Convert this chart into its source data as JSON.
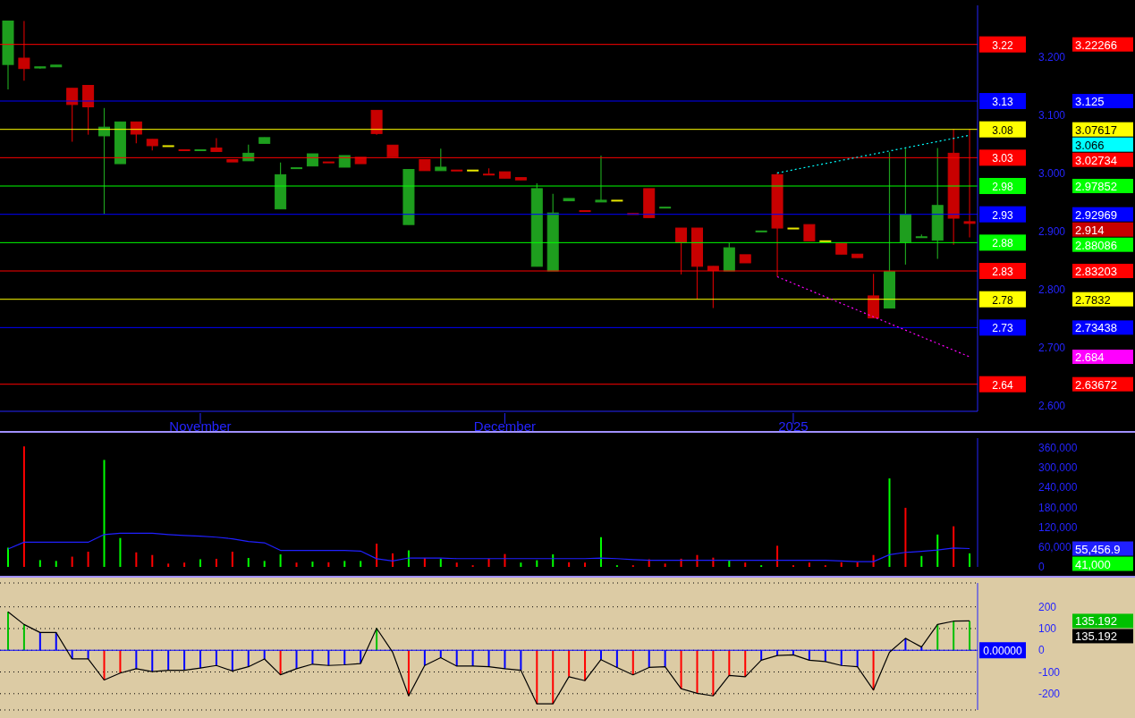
{
  "chart_data": [
    {
      "type": "candlestick",
      "categories": [
        null,
        null,
        null,
        null,
        null,
        null,
        null,
        null,
        null,
        null,
        null,
        null,
        "November",
        null,
        null,
        null,
        null,
        null,
        null,
        null,
        null,
        null,
        null,
        null,
        null,
        null,
        null,
        null,
        null,
        null,
        null,
        "December",
        null,
        null,
        null,
        null,
        null,
        null,
        null,
        null,
        null,
        null,
        null,
        null,
        null,
        null,
        null,
        null,
        null,
        "2025",
        null,
        null,
        null,
        null,
        null,
        null,
        null,
        null,
        null,
        null,
        null
      ],
      "ohlc": [
        [
          3.188,
          3.263,
          3.145,
          3.263
        ],
        [
          3.199,
          3.263,
          3.16,
          3.181
        ],
        [
          3.182,
          3.184,
          3.181,
          3.184
        ],
        [
          3.184,
          3.187,
          3.184,
          3.187
        ],
        [
          3.147,
          3.147,
          3.055,
          3.119
        ],
        [
          3.152,
          3.152,
          3.067,
          3.115
        ],
        [
          3.065,
          3.113,
          2.93,
          3.08
        ],
        [
          3.017,
          3.089,
          3.017,
          3.089
        ],
        [
          3.089,
          3.089,
          3.052,
          3.068
        ],
        [
          3.059,
          3.059,
          3.04,
          3.048
        ],
        [
          3.048,
          3.048,
          3.048,
          3.048
        ],
        [
          3.041,
          3.041,
          3.04,
          3.04
        ],
        [
          3.04,
          3.041,
          3.04,
          3.041
        ],
        [
          3.044,
          3.061,
          3.038,
          3.038
        ],
        [
          3.024,
          3.024,
          3.02,
          3.02
        ],
        [
          3.022,
          3.05,
          3.022,
          3.035
        ],
        [
          3.052,
          3.062,
          3.052,
          3.062
        ],
        [
          2.939,
          3.019,
          2.939,
          2.998
        ],
        [
          3.009,
          3.01,
          3.009,
          3.01
        ],
        [
          3.013,
          3.034,
          3.013,
          3.034
        ],
        [
          3.02,
          3.02,
          3.019,
          3.019
        ],
        [
          3.011,
          3.031,
          3.011,
          3.031
        ],
        [
          3.028,
          3.028,
          3.017,
          3.017
        ],
        [
          3.109,
          3.109,
          3.067,
          3.069
        ],
        [
          3.049,
          3.049,
          3.029,
          3.029
        ],
        [
          2.912,
          3.007,
          2.912,
          3.007
        ],
        [
          3.024,
          3.024,
          3.005,
          3.005
        ],
        [
          3.005,
          3.043,
          3.005,
          3.011
        ],
        [
          3.006,
          3.006,
          3.005,
          3.005
        ],
        [
          3.006,
          3.006,
          3.006,
          3.006
        ],
        [
          2.999,
          3.009,
          2.998,
          2.998
        ],
        [
          3.003,
          3.003,
          2.992,
          2.992
        ],
        [
          2.993,
          2.993,
          2.989,
          2.989
        ],
        [
          2.84,
          2.983,
          2.84,
          2.974
        ],
        [
          2.832,
          2.965,
          2.832,
          2.932
        ],
        [
          2.953,
          2.957,
          2.953,
          2.957
        ],
        [
          2.936,
          2.936,
          2.935,
          2.935
        ],
        [
          2.951,
          3.031,
          2.951,
          2.954
        ],
        [
          2.954,
          2.954,
          2.954,
          2.954
        ],
        [
          2.931,
          2.931,
          2.93,
          2.93
        ],
        [
          2.974,
          2.974,
          2.924,
          2.924
        ],
        [
          2.941,
          2.942,
          2.941,
          2.942
        ],
        [
          2.906,
          2.906,
          2.826,
          2.881
        ],
        [
          2.906,
          2.906,
          2.783,
          2.84
        ],
        [
          2.84,
          2.84,
          2.768,
          2.833
        ],
        [
          2.832,
          2.88,
          2.832,
          2.872
        ],
        [
          2.86,
          2.86,
          2.846,
          2.846
        ],
        [
          2.9,
          2.901,
          2.9,
          2.901
        ],
        [
          2.998,
          3.002,
          2.822,
          2.906
        ],
        [
          2.906,
          2.906,
          2.906,
          2.906
        ],
        [
          2.912,
          2.912,
          2.884,
          2.884
        ],
        [
          2.884,
          2.884,
          2.884,
          2.884
        ],
        [
          2.879,
          2.879,
          2.861,
          2.861
        ],
        [
          2.861,
          2.861,
          2.855,
          2.855
        ],
        [
          2.789,
          2.827,
          2.751,
          2.751
        ],
        [
          2.768,
          3.037,
          2.768,
          2.831
        ],
        [
          2.882,
          3.043,
          2.843,
          2.93
        ],
        [
          2.89,
          2.895,
          2.89,
          2.891
        ],
        [
          2.885,
          3.044,
          2.853,
          2.945
        ],
        [
          3.035,
          3.077,
          2.877,
          2.923
        ],
        [
          2.917,
          3.077,
          2.89,
          2.914
        ]
      ],
      "colors": [
        "#1e9e1e",
        "#c80000",
        "#1e9e1e",
        "#1e9e1e",
        "#c80000",
        "#c80000",
        "#1e9e1e",
        "#1e9e1e",
        "#c80000",
        "#c80000",
        "#e6e600",
        "#c80000",
        "#1e9e1e",
        "#c80000",
        "#c80000",
        "#1e9e1e",
        "#1e9e1e",
        "#1e9e1e",
        "#1e9e1e",
        "#1e9e1e",
        "#c80000",
        "#1e9e1e",
        "#c80000",
        "#c80000",
        "#c80000",
        "#1e9e1e",
        "#c80000",
        "#1e9e1e",
        "#c80000",
        "#e6e600",
        "#c80000",
        "#c80000",
        "#c80000",
        "#1e9e1e",
        "#1e9e1e",
        "#1e9e1e",
        "#c80000",
        "#1e9e1e",
        "#e6e600",
        "#c80000",
        "#c80000",
        "#1e9e1e",
        "#c80000",
        "#c80000",
        "#c80000",
        "#1e9e1e",
        "#c80000",
        "#1e9e1e",
        "#c80000",
        "#e6e600",
        "#c80000",
        "#e6e600",
        "#c80000",
        "#c80000",
        "#c80000",
        "#1e9e1e",
        "#1e9e1e",
        "#1e9e1e",
        "#1e9e1e",
        "#c80000",
        "#c80000"
      ],
      "series": [
        {
          "type": "line",
          "color": "#00ffff",
          "line_style": "dotted",
          "values": [
            null,
            null,
            null,
            null,
            null,
            null,
            null,
            null,
            null,
            null,
            null,
            null,
            null,
            null,
            null,
            null,
            null,
            null,
            null,
            null,
            null,
            null,
            null,
            null,
            null,
            null,
            null,
            null,
            null,
            null,
            null,
            null,
            null,
            null,
            null,
            null,
            null,
            null,
            null,
            null,
            null,
            null,
            null,
            null,
            null,
            null,
            null,
            null,
            3.001,
            null,
            null,
            null,
            null,
            null,
            null,
            null,
            null,
            null,
            null,
            null,
            3.066
          ]
        },
        {
          "type": "line",
          "color": "#ff00ff",
          "line_style": "dotted",
          "values": [
            null,
            null,
            null,
            null,
            null,
            null,
            null,
            null,
            null,
            null,
            null,
            null,
            null,
            null,
            null,
            null,
            null,
            null,
            null,
            null,
            null,
            null,
            null,
            null,
            null,
            null,
            null,
            null,
            null,
            null,
            null,
            null,
            null,
            null,
            null,
            null,
            null,
            null,
            null,
            null,
            null,
            null,
            null,
            null,
            null,
            null,
            null,
            null,
            2.822,
            null,
            null,
            null,
            null,
            null,
            null,
            null,
            null,
            null,
            null,
            null,
            2.684
          ]
        }
      ],
      "ylim": [
        2.59,
        3.29
      ],
      "yticks": [
        {
          "value": 2.6,
          "label": "2.600"
        },
        {
          "value": 2.7,
          "label": "2.700"
        },
        {
          "value": 2.8,
          "label": "2.800"
        },
        {
          "value": 2.9,
          "label": "2.900"
        },
        {
          "value": 3.0,
          "label": "3.000"
        },
        {
          "value": 3.1,
          "label": "3.100"
        },
        {
          "value": 3.2,
          "label": "3.200"
        }
      ],
      "ref_lines": [
        {
          "axis": "y",
          "value": 3.22266,
          "label": "3.22",
          "color": "#ff0000"
        },
        {
          "axis": "y",
          "value": 3.125,
          "label": "3.13",
          "color": "#0000ff"
        },
        {
          "axis": "y",
          "value": 3.07617,
          "label": "3.08",
          "color": "#ffff00"
        },
        {
          "axis": "y",
          "value": 3.02734,
          "label": "3.03",
          "color": "#ff0000"
        },
        {
          "axis": "y",
          "value": 2.97852,
          "label": "2.98",
          "color": "#00ff00"
        },
        {
          "axis": "y",
          "value": 2.92969,
          "label": "2.93",
          "color": "#0000ff"
        },
        {
          "axis": "y",
          "value": 2.88086,
          "label": "2.88",
          "color": "#00ff00"
        },
        {
          "axis": "y",
          "value": 2.83203,
          "label": "2.83",
          "color": "#ff0000"
        },
        {
          "axis": "y",
          "value": 2.7832,
          "label": "2.78",
          "color": "#ffff00"
        },
        {
          "axis": "y",
          "value": 2.73438,
          "label": "2.73",
          "color": "#0000ff"
        },
        {
          "axis": "y",
          "value": 2.63672,
          "label": "2.64",
          "color": "#ff0000"
        }
      ],
      "annotations": [
        "3.22266",
        "3.125",
        "3.07617",
        "3.066",
        "3.02734",
        "2.97852",
        "2.92969",
        "2.914",
        "2.88086",
        "2.83203",
        "2.7832",
        "2.73438",
        "2.684",
        "2.63672"
      ]
    },
    {
      "type": "bar",
      "categories": [
        null,
        null,
        null,
        null,
        null,
        null,
        null,
        null,
        null,
        null,
        null,
        null,
        null,
        null,
        null,
        null,
        null,
        null,
        null,
        null,
        null,
        null,
        null,
        null,
        null,
        null,
        null,
        null,
        null,
        null,
        null,
        null,
        null,
        null,
        null,
        null,
        null,
        null,
        null,
        null,
        null,
        null,
        null,
        null,
        null,
        null,
        null,
        null,
        null,
        null,
        null,
        null,
        null,
        null,
        null,
        null,
        null,
        null,
        null,
        null,
        null
      ],
      "series": [
        {
          "type": "bar",
          "values": [
            58000,
            365000,
            20600,
            18000,
            31000,
            46000,
            324000,
            87500,
            44000,
            36000,
            10000,
            13000,
            23000,
            24500,
            46000,
            27000,
            18000,
            38000,
            13000,
            16000,
            14000,
            18000,
            18000,
            70500,
            41000,
            50000,
            27000,
            24700,
            13000,
            5000,
            24700,
            39000,
            13000,
            20000,
            38000,
            14000,
            13000,
            90000,
            5000,
            5000,
            23000,
            10000,
            24700,
            36000,
            28000,
            20000,
            13000,
            5000,
            64000,
            5000,
            13000,
            5000,
            14000,
            14000,
            36000,
            268000,
            179000,
            33000,
            98000,
            123000,
            41000
          ],
          "colors": [
            "#00ff00",
            "#ff0000",
            "#00ff00",
            "#00ff00",
            "#ff0000",
            "#ff0000",
            "#00ff00",
            "#00ff00",
            "#ff0000",
            "#ff0000",
            "#ff0000",
            "#ff0000",
            "#00ff00",
            "#ff0000",
            "#ff0000",
            "#00ff00",
            "#00ff00",
            "#00ff00",
            "#ff0000",
            "#00ff00",
            "#ff0000",
            "#00ff00",
            "#00ff00",
            "#ff0000",
            "#ff0000",
            "#00ff00",
            "#ff0000",
            "#00ff00",
            "#ff0000",
            "#ff0000",
            "#ff0000",
            "#ff0000",
            "#00ff00",
            "#00ff00",
            "#00ff00",
            "#ff0000",
            "#ff0000",
            "#00ff00",
            "#00ff00",
            "#ff0000",
            "#ff0000",
            "#ff0000",
            "#ff0000",
            "#ff0000",
            "#ff0000",
            "#00ff00",
            "#ff0000",
            "#00ff00",
            "#ff0000",
            "#ff0000",
            "#ff0000",
            "#ff0000",
            "#ff0000",
            "#ff0000",
            "#ff0000",
            "#00ff00",
            "#ff0000",
            "#00ff00",
            "#00ff00",
            "#ff0000",
            "#00ff00"
          ]
        },
        {
          "type": "line",
          "color": "#2020ff",
          "values": [
            54000,
            74700,
            74700,
            74700,
            74700,
            74700,
            98000,
            101700,
            101700,
            101700,
            98000,
            95000,
            93000,
            90000,
            85000,
            77000,
            73000,
            50000,
            50000,
            50000,
            50000,
            50000,
            48000,
            24700,
            18000,
            27000,
            27000,
            27000,
            25000,
            25000,
            25000,
            25000,
            25000,
            25000,
            25000,
            25000,
            25000,
            27000,
            25000,
            22000,
            20000,
            20000,
            20000,
            20000,
            20000,
            20000,
            20000,
            20000,
            20000,
            20000,
            20000,
            20000,
            18000,
            16000,
            16000,
            37000,
            44000,
            47000,
            51000,
            57000,
            55456.9
          ]
        }
      ],
      "ylim": [
        0,
        390000
      ],
      "annotations": [
        "55,456.9",
        "41,000"
      ],
      "yticks": [
        0,
        {
          "value": 60000,
          "label": "60,000"
        },
        {
          "value": 120000,
          "label": "120,000"
        },
        {
          "value": 180000,
          "label": "180,000"
        },
        {
          "value": 240000,
          "label": "240,000"
        },
        {
          "value": 300000,
          "label": "300,000"
        },
        {
          "value": 360000,
          "label": "360,000"
        }
      ]
    },
    {
      "type": "bar",
      "categories": [
        null,
        null,
        null,
        null,
        null,
        null,
        null,
        null,
        null,
        null,
        null,
        null,
        null,
        null,
        null,
        null,
        null,
        null,
        null,
        null,
        null,
        null,
        null,
        null,
        null,
        null,
        null,
        null,
        null,
        null,
        null,
        null,
        null,
        null,
        null,
        null,
        null,
        null,
        null,
        null,
        null,
        null,
        null,
        null,
        null,
        null,
        null,
        null,
        null,
        null,
        null,
        null,
        null,
        null,
        null,
        null,
        null,
        null,
        null,
        null,
        null
      ],
      "series": [
        {
          "type": "bar",
          "values": [
            177,
            119,
            82,
            82,
            -40,
            -40,
            -137,
            -105,
            -85,
            -98,
            -92,
            -92,
            -82,
            -70,
            -95,
            -76,
            -40,
            -113,
            -85,
            -64,
            -70,
            -67,
            -61,
            101,
            null,
            -210,
            -70,
            -34,
            -73,
            -73,
            -76,
            -85,
            -92,
            -247,
            -247,
            -122,
            -140,
            -43,
            -79,
            -113,
            -79,
            -76,
            -177,
            -198,
            -210,
            -116,
            -122,
            -46,
            -24,
            -21,
            -46,
            -52,
            -70,
            -76,
            -183,
            null,
            55,
            15,
            119,
            134,
            135.192
          ],
          "colors": [
            "#00c000",
            "#00c000",
            "#0000ff",
            "#0000ff",
            "#0000ff",
            "#0000ff",
            "#ff0000",
            "#ff0000",
            "#0000ff",
            "#0000ff",
            "#0000ff",
            "#0000ff",
            "#0000ff",
            "#0000ff",
            "#0000ff",
            "#0000ff",
            "#0000ff",
            "#ff0000",
            "#0000ff",
            "#0000ff",
            "#0000ff",
            "#0000ff",
            "#0000ff",
            "#00c000",
            "#0000ff",
            "#ff0000",
            "#0000ff",
            "#0000ff",
            "#0000ff",
            "#0000ff",
            "#0000ff",
            "#0000ff",
            "#0000ff",
            "#ff0000",
            "#ff0000",
            "#ff0000",
            "#ff0000",
            "#0000ff",
            "#0000ff",
            "#ff0000",
            "#0000ff",
            "#0000ff",
            "#ff0000",
            "#ff0000",
            "#ff0000",
            "#ff0000",
            "#ff0000",
            "#0000ff",
            "#0000ff",
            "#0000ff",
            "#0000ff",
            "#0000ff",
            "#0000ff",
            "#0000ff",
            "#ff0000",
            "#0000ff",
            "#0000ff",
            "#0000ff",
            "#00c000",
            "#00c000",
            "#00c000"
          ]
        },
        {
          "type": "line",
          "color": "#000000",
          "values": [
            177,
            119,
            82,
            82,
            -40,
            -40,
            -137,
            -105,
            -85,
            -98,
            -92,
            -92,
            -82,
            -70,
            -95,
            -76,
            -40,
            -113,
            -85,
            -64,
            -70,
            -67,
            -61,
            101,
            -9,
            -210,
            -70,
            -34,
            -73,
            -73,
            -76,
            -85,
            -92,
            -247,
            -247,
            -122,
            -140,
            -43,
            -79,
            -113,
            -79,
            -76,
            -177,
            -198,
            -210,
            -116,
            -122,
            -46,
            -24,
            -21,
            -46,
            -52,
            -70,
            -76,
            -183,
            -9,
            55,
            15,
            119,
            134,
            135.192
          ]
        }
      ],
      "ylim": [
        -275,
        310
      ],
      "yticks": [
        -200,
        -100,
        0,
        100,
        200
      ],
      "grid": "y",
      "annotations": [
        "135.192",
        "135.192"
      ],
      "ref_lines": [
        {
          "axis": "y",
          "value": 0,
          "label": "0.00000",
          "color": "#0000ff"
        }
      ]
    }
  ]
}
